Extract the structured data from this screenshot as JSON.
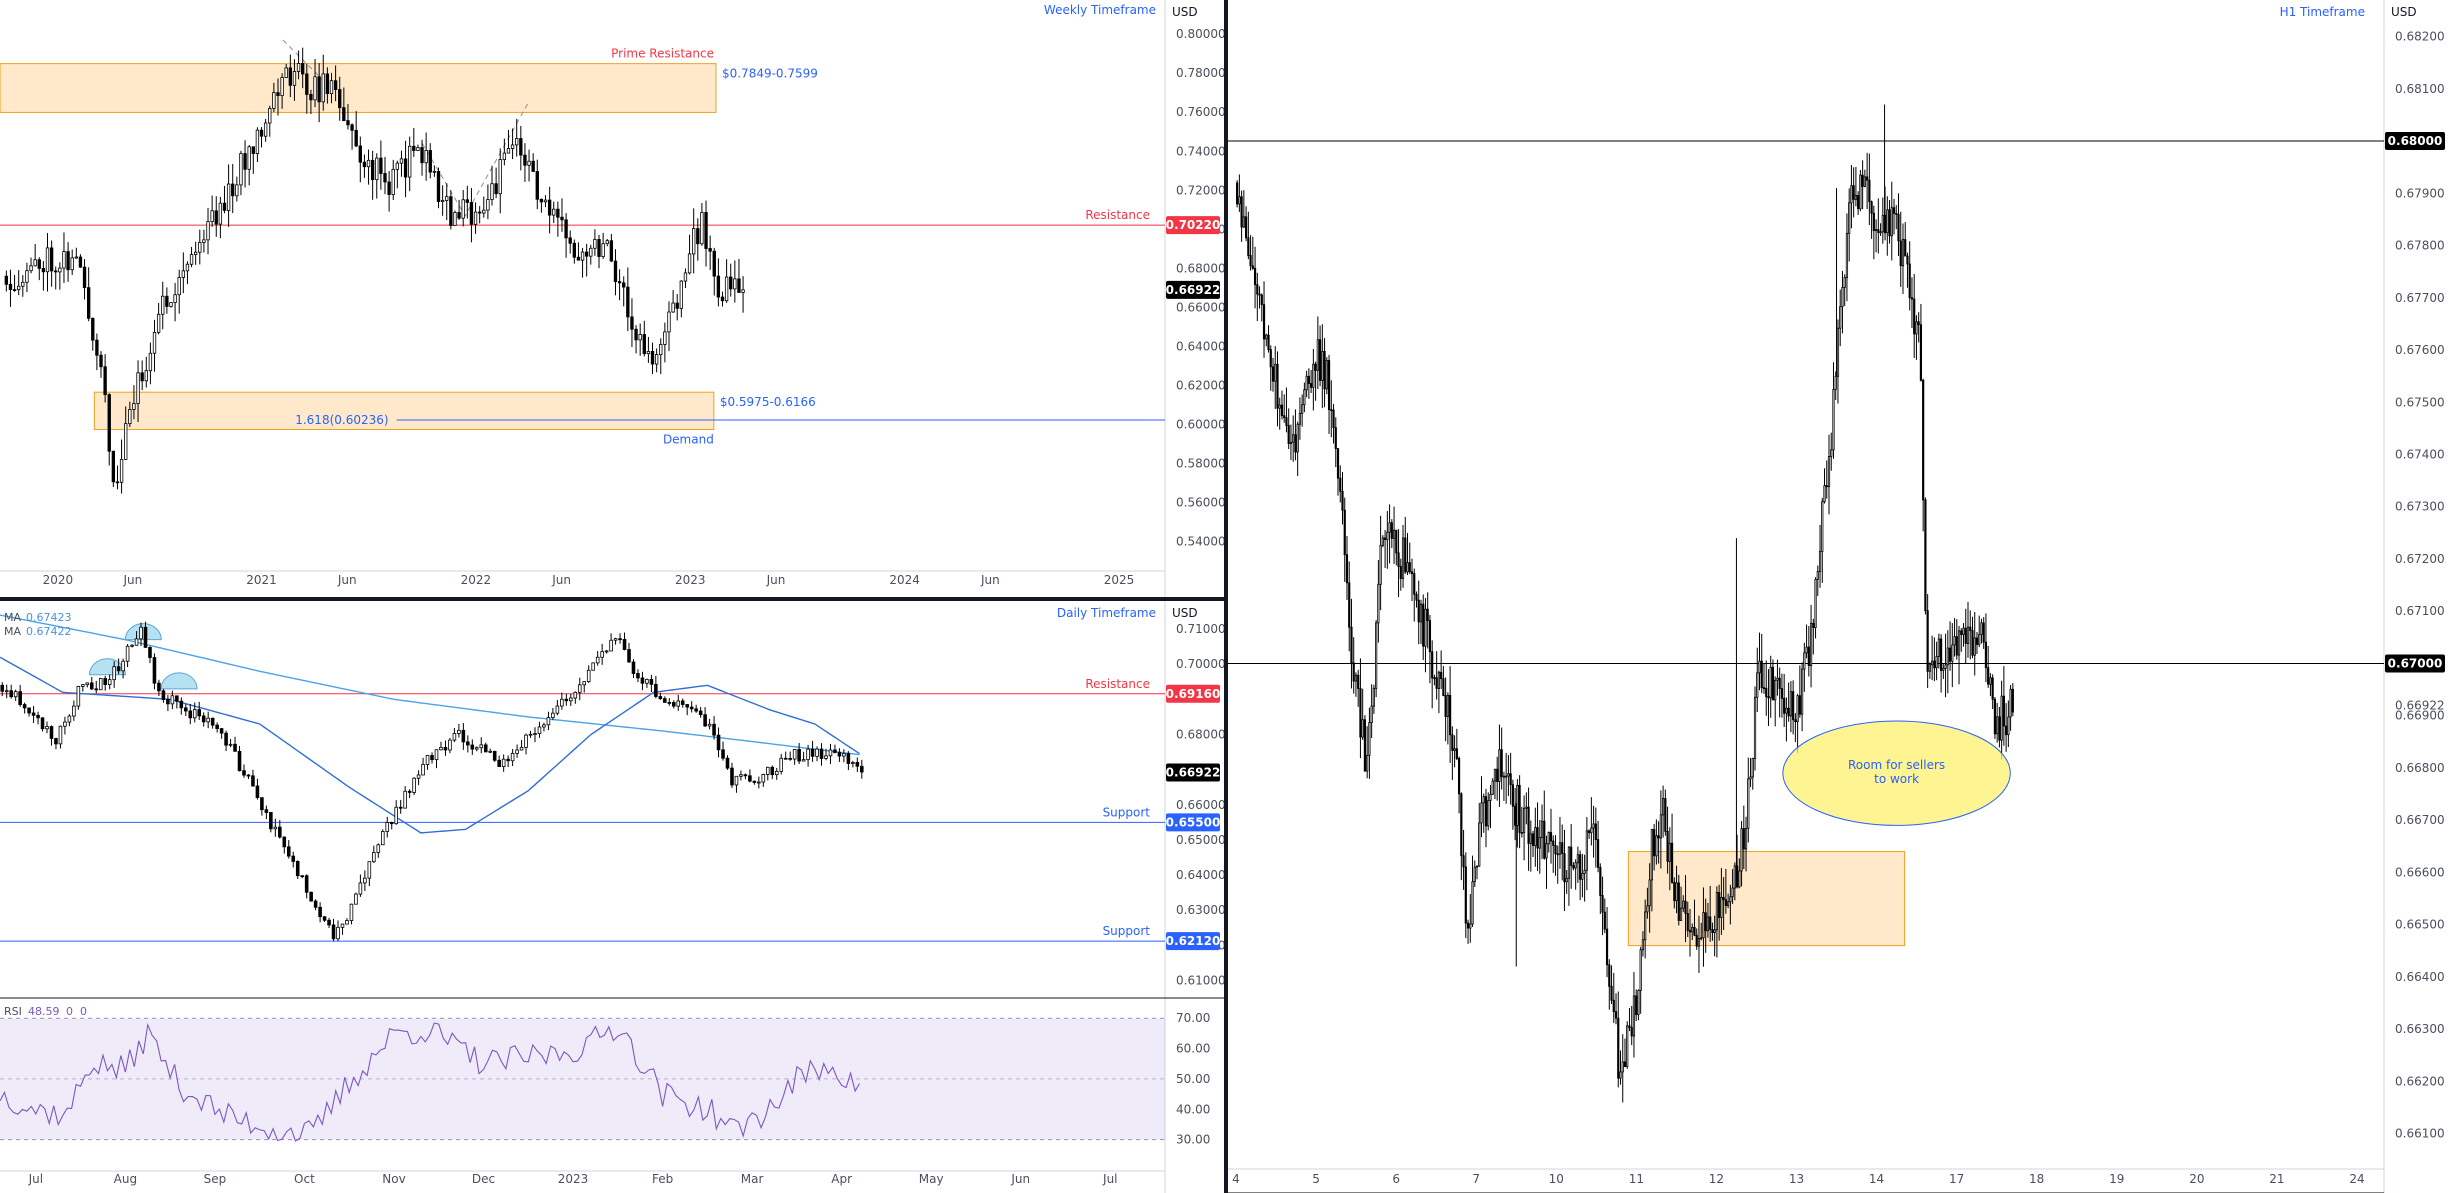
{
  "currency": "USD",
  "chart_data": [
    {
      "id": "weekly",
      "type": "candlestick",
      "title": "Weekly Timeframe",
      "y_axis": {
        "ticks": [
          "0.80000",
          "0.78000",
          "0.76000",
          "0.74000",
          "0.72000",
          "0.70000",
          "0.68000",
          "0.66000",
          "0.64000",
          "0.62000",
          "0.60000",
          "0.58000",
          "0.56000",
          "0.54000"
        ],
        "range": [
          0.525,
          0.8175
        ]
      },
      "x_axis": {
        "labels": [
          {
            "label": "2020",
            "t": 0.05
          },
          {
            "label": "Jun",
            "t": 0.4
          },
          {
            "label": "2021",
            "t": 1.0
          },
          {
            "label": "Jun",
            "t": 1.4
          },
          {
            "label": "2022",
            "t": 2.0
          },
          {
            "label": "Jun",
            "t": 2.4
          },
          {
            "label": "2023",
            "t": 3.0
          },
          {
            "label": "Jun",
            "t": 3.4
          },
          {
            "label": "2024",
            "t": 4.0
          },
          {
            "label": "Jun",
            "t": 4.4
          },
          {
            "label": "2025",
            "t": 5.0
          }
        ],
        "range": [
          -0.22,
          5.21
        ]
      },
      "last_price": "0.66922",
      "zones": [
        {
          "label": "$0.7849-0.7599",
          "name": "Prime Resistance",
          "low": 0.7599,
          "high": 0.7849,
          "t_start": -0.22,
          "t_end": 3.12
        },
        {
          "label": "$0.5975-0.6166",
          "name": "Demand",
          "low": 0.5975,
          "high": 0.6166,
          "t_start": 0.22,
          "t_end": 3.11
        }
      ],
      "levels": [
        {
          "name": "Resistance",
          "value": 0.7022,
          "badge": "0.70220",
          "color": "#f23645"
        }
      ],
      "fib": {
        "label": "1.618(0.60236)",
        "value": 0.60236,
        "t_start": 1.63
      },
      "anchors": [
        {
          "t": -0.2,
          "p": 0.676
        },
        {
          "t": -0.1,
          "p": 0.675
        },
        {
          "t": 0.0,
          "p": 0.686
        },
        {
          "t": 0.15,
          "p": 0.684
        },
        {
          "t": 0.28,
          "p": 0.62
        },
        {
          "t": 0.32,
          "p": 0.561
        },
        {
          "t": 0.38,
          "p": 0.6
        },
        {
          "t": 0.55,
          "p": 0.662
        },
        {
          "t": 0.75,
          "p": 0.7
        },
        {
          "t": 0.9,
          "p": 0.728
        },
        {
          "t": 1.05,
          "p": 0.765
        },
        {
          "t": 1.15,
          "p": 0.782
        },
        {
          "t": 1.25,
          "p": 0.772
        },
        {
          "t": 1.35,
          "p": 0.774
        },
        {
          "t": 1.45,
          "p": 0.74
        },
        {
          "t": 1.6,
          "p": 0.724
        },
        {
          "t": 1.75,
          "p": 0.742
        },
        {
          "t": 1.9,
          "p": 0.705
        },
        {
          "t": 2.05,
          "p": 0.713
        },
        {
          "t": 2.2,
          "p": 0.746
        },
        {
          "t": 2.35,
          "p": 0.706
        },
        {
          "t": 2.5,
          "p": 0.69
        },
        {
          "t": 2.62,
          "p": 0.695
        },
        {
          "t": 2.75,
          "p": 0.648
        },
        {
          "t": 2.84,
          "p": 0.628
        },
        {
          "t": 3.0,
          "p": 0.685
        },
        {
          "t": 3.06,
          "p": 0.704
        },
        {
          "t": 3.15,
          "p": 0.668
        },
        {
          "t": 3.24,
          "p": 0.669
        }
      ],
      "candle_step": 0.0192,
      "seed": 11,
      "annotations": [
        {
          "type": "dashed",
          "points": [
            [
              1.1,
              0.797
            ],
            [
              1.3,
              0.775
            ]
          ]
        },
        {
          "type": "dashed",
          "points": [
            [
              1.75,
              0.744
            ],
            [
              1.95,
              0.707
            ],
            [
              2.25,
              0.766
            ]
          ]
        }
      ]
    },
    {
      "id": "daily",
      "type": "candlestick",
      "title": "Daily Timeframe",
      "y_axis": {
        "ticks": [
          "0.71000",
          "0.70000",
          "0.68000",
          "0.66000",
          "0.65000",
          "0.64000",
          "0.63000",
          "0.62000",
          "0.61000"
        ],
        "range": [
          0.605,
          0.718
        ]
      },
      "x_axis": {
        "labels": [
          {
            "label": "Jul",
            "t": 0.5
          },
          {
            "label": "Aug",
            "t": 1.5
          },
          {
            "label": "Sep",
            "t": 2.5
          },
          {
            "label": "Oct",
            "t": 3.5
          },
          {
            "label": "Nov",
            "t": 4.5
          },
          {
            "label": "Dec",
            "t": 5.5
          },
          {
            "label": "2023",
            "t": 6.5
          },
          {
            "label": "Feb",
            "t": 7.5
          },
          {
            "label": "Mar",
            "t": 8.5
          },
          {
            "label": "Apr",
            "t": 9.5
          },
          {
            "label": "May",
            "t": 10.5
          },
          {
            "label": "Jun",
            "t": 11.5
          },
          {
            "label": "Jul",
            "t": 12.5
          }
        ],
        "range": [
          0.1,
          13.1
        ]
      },
      "last_price": "0.66922",
      "indicators": [
        {
          "name": "MA",
          "value": "0.67423",
          "color": "#4a90e2"
        },
        {
          "name": "MA",
          "value": "0.67422",
          "color": "#4a90e2"
        }
      ],
      "levels": [
        {
          "name": "Resistance",
          "value": 0.6916,
          "badge": "0.69160",
          "color": "#f23645"
        },
        {
          "name": "Support",
          "value": 0.655,
          "badge": "0.65500",
          "color": "#2962ff"
        },
        {
          "name": "Support",
          "value": 0.6212,
          "badge": "0.62120",
          "color": "#2962ff"
        }
      ],
      "anchors": [
        {
          "t": 0.1,
          "p": 0.694
        },
        {
          "t": 0.35,
          "p": 0.69
        },
        {
          "t": 0.75,
          "p": 0.678
        },
        {
          "t": 1.05,
          "p": 0.695
        },
        {
          "t": 1.3,
          "p": 0.694
        },
        {
          "t": 1.7,
          "p": 0.709
        },
        {
          "t": 1.9,
          "p": 0.692
        },
        {
          "t": 2.2,
          "p": 0.687
        },
        {
          "t": 2.6,
          "p": 0.681
        },
        {
          "t": 3.2,
          "p": 0.652
        },
        {
          "t": 3.85,
          "p": 0.623
        },
        {
          "t": 4.05,
          "p": 0.63
        },
        {
          "t": 4.4,
          "p": 0.652
        },
        {
          "t": 4.9,
          "p": 0.673
        },
        {
          "t": 5.25,
          "p": 0.68
        },
        {
          "t": 5.7,
          "p": 0.672
        },
        {
          "t": 6.2,
          "p": 0.683
        },
        {
          "t": 6.7,
          "p": 0.698
        },
        {
          "t": 7.0,
          "p": 0.709
        },
        {
          "t": 7.2,
          "p": 0.698
        },
        {
          "t": 7.5,
          "p": 0.691
        },
        {
          "t": 8.0,
          "p": 0.684
        },
        {
          "t": 8.3,
          "p": 0.667
        },
        {
          "t": 8.6,
          "p": 0.668
        },
        {
          "t": 9.0,
          "p": 0.674
        },
        {
          "t": 9.4,
          "p": 0.675
        },
        {
          "t": 9.6,
          "p": 0.673
        },
        {
          "t": 9.72,
          "p": 0.669
        }
      ],
      "candle_step": 0.05,
      "seed": 23,
      "ma_slow": [
        [
          0.1,
          0.714
        ],
        [
          1.5,
          0.707
        ],
        [
          3.0,
          0.698
        ],
        [
          4.5,
          0.69
        ],
        [
          6.0,
          0.685
        ],
        [
          7.5,
          0.681
        ],
        [
          8.5,
          0.678
        ],
        [
          9.72,
          0.6742
        ]
      ],
      "ma_fast": [
        [
          0.1,
          0.702
        ],
        [
          0.8,
          0.692
        ],
        [
          2.0,
          0.69
        ],
        [
          3.0,
          0.683
        ],
        [
          4.0,
          0.665
        ],
        [
          4.8,
          0.652
        ],
        [
          5.3,
          0.653
        ],
        [
          6.0,
          0.664
        ],
        [
          6.7,
          0.68
        ],
        [
          7.4,
          0.692
        ],
        [
          8.0,
          0.694
        ],
        [
          8.7,
          0.687
        ],
        [
          9.2,
          0.683
        ],
        [
          9.72,
          0.6742
        ]
      ],
      "patterns": [
        [
          1.3,
          0.697
        ],
        [
          1.7,
          0.707
        ],
        [
          2.1,
          0.693
        ]
      ]
    },
    {
      "id": "rsi",
      "type": "line",
      "indicator": {
        "name": "RSI",
        "value": "48.59",
        "extra": [
          "0",
          "0"
        ]
      },
      "y_axis": {
        "ticks": [
          "70.00",
          "60.00",
          "50.00",
          "40.00",
          "30.00"
        ],
        "range": [
          20,
          76
        ]
      },
      "x_axis": {
        "range": [
          0.1,
          13.1
        ]
      },
      "bands": {
        "upper": 70,
        "mid": 50,
        "lower": 30
      },
      "anchors": [
        {
          "t": 0.1,
          "p": 45
        },
        {
          "t": 0.5,
          "p": 40
        },
        {
          "t": 0.85,
          "p": 38
        },
        {
          "t": 1.1,
          "p": 55
        },
        {
          "t": 1.5,
          "p": 53
        },
        {
          "t": 1.75,
          "p": 65
        },
        {
          "t": 2.1,
          "p": 48
        },
        {
          "t": 2.6,
          "p": 38
        },
        {
          "t": 3.2,
          "p": 33
        },
        {
          "t": 3.6,
          "p": 32
        },
        {
          "t": 3.9,
          "p": 45
        },
        {
          "t": 4.5,
          "p": 65
        },
        {
          "t": 4.9,
          "p": 66
        },
        {
          "t": 5.5,
          "p": 55
        },
        {
          "t": 6.2,
          "p": 58
        },
        {
          "t": 6.6,
          "p": 60
        },
        {
          "t": 7.0,
          "p": 68
        },
        {
          "t": 7.5,
          "p": 45
        },
        {
          "t": 8.0,
          "p": 40
        },
        {
          "t": 8.3,
          "p": 33
        },
        {
          "t": 8.7,
          "p": 40
        },
        {
          "t": 9.0,
          "p": 50
        },
        {
          "t": 9.4,
          "p": 55
        },
        {
          "t": 9.6,
          "p": 48
        },
        {
          "t": 9.72,
          "p": 48.59
        }
      ],
      "seed": 37
    },
    {
      "id": "h1",
      "type": "candlestick",
      "title": "H1 Timeframe",
      "y_axis": {
        "ticks": [
          "0.68200",
          "0.68100",
          "0.67900",
          "0.67800",
          "0.67700",
          "0.67600",
          "0.67500",
          "0.67400",
          "0.67300",
          "0.67200",
          "0.67100",
          "0.66900",
          "0.66800",
          "0.66700",
          "0.66600",
          "0.66500",
          "0.66400",
          "0.66300",
          "0.66200",
          "0.66100"
        ],
        "range": [
          0.6604,
          0.6827
        ]
      },
      "x_axis": {
        "labels": [
          {
            "label": "4",
            "t": 0.1
          },
          {
            "label": "5",
            "t": 1.1
          },
          {
            "label": "6",
            "t": 2.1
          },
          {
            "label": "7",
            "t": 3.1
          },
          {
            "label": "10",
            "t": 4.1
          },
          {
            "label": "11",
            "t": 5.1
          },
          {
            "label": "12",
            "t": 6.1
          },
          {
            "label": "13",
            "t": 7.1
          },
          {
            "label": "14",
            "t": 8.1
          },
          {
            "label": "17",
            "t": 9.1
          },
          {
            "label": "18",
            "t": 10.1
          },
          {
            "label": "19",
            "t": 11.1
          },
          {
            "label": "20",
            "t": 12.1
          },
          {
            "label": "21",
            "t": 13.1
          },
          {
            "label": "24",
            "t": 14.1
          }
        ],
        "range": [
          0.0,
          14.4
        ]
      },
      "last_price": "0.66922",
      "levels": [
        {
          "name": "",
          "value": 0.68,
          "badge": "0.68000",
          "color": "#000000"
        },
        {
          "name": "",
          "value": 0.67,
          "badge": "0.67000",
          "color": "#000000"
        }
      ],
      "zones": [
        {
          "label": "",
          "low": 0.6646,
          "high": 0.6664,
          "t_start": 5.0,
          "t_end": 8.45
        }
      ],
      "ellipse": {
        "label": [
          "Room for sellers",
          "to work"
        ],
        "t_center": 8.35,
        "p_center": 0.6679,
        "t_radius": 1.42,
        "p_radius": 0.001
      },
      "anchors": [
        {
          "t": 0.1,
          "p": 0.6792
        },
        {
          "t": 0.35,
          "p": 0.6775
        },
        {
          "t": 0.55,
          "p": 0.676
        },
        {
          "t": 0.8,
          "p": 0.6738
        },
        {
          "t": 1.1,
          "p": 0.676
        },
        {
          "t": 1.25,
          "p": 0.6755
        },
        {
          "t": 1.45,
          "p": 0.6725
        },
        {
          "t": 1.6,
          "p": 0.6695
        },
        {
          "t": 1.75,
          "p": 0.668
        },
        {
          "t": 1.95,
          "p": 0.6725
        },
        {
          "t": 2.2,
          "p": 0.672
        },
        {
          "t": 2.5,
          "p": 0.6705
        },
        {
          "t": 2.85,
          "p": 0.6685
        },
        {
          "t": 3.0,
          "p": 0.6648
        },
        {
          "t": 3.15,
          "p": 0.6668
        },
        {
          "t": 3.4,
          "p": 0.668
        },
        {
          "t": 3.55,
          "p": 0.6675
        },
        {
          "t": 3.75,
          "p": 0.6668
        },
        {
          "t": 4.0,
          "p": 0.6665
        },
        {
          "t": 4.3,
          "p": 0.666
        },
        {
          "t": 4.6,
          "p": 0.6668
        },
        {
          "t": 4.75,
          "p": 0.6645
        },
        {
          "t": 4.9,
          "p": 0.6622
        },
        {
          "t": 5.1,
          "p": 0.6635
        },
        {
          "t": 5.3,
          "p": 0.6665
        },
        {
          "t": 5.45,
          "p": 0.667
        },
        {
          "t": 5.6,
          "p": 0.6655
        },
        {
          "t": 5.85,
          "p": 0.6648
        },
        {
          "t": 6.1,
          "p": 0.6652
        },
        {
          "t": 6.4,
          "p": 0.666
        },
        {
          "t": 6.65,
          "p": 0.6698
        },
        {
          "t": 6.9,
          "p": 0.6695
        },
        {
          "t": 7.1,
          "p": 0.669
        },
        {
          "t": 7.3,
          "p": 0.6705
        },
        {
          "t": 7.55,
          "p": 0.6745
        },
        {
          "t": 7.75,
          "p": 0.6785
        },
        {
          "t": 7.9,
          "p": 0.6792
        },
        {
          "t": 8.1,
          "p": 0.6785
        },
        {
          "t": 8.35,
          "p": 0.6783
        },
        {
          "t": 8.55,
          "p": 0.677
        },
        {
          "t": 8.65,
          "p": 0.6762
        },
        {
          "t": 8.75,
          "p": 0.6695
        },
        {
          "t": 8.9,
          "p": 0.6702
        },
        {
          "t": 9.2,
          "p": 0.6705
        },
        {
          "t": 9.45,
          "p": 0.6705
        },
        {
          "t": 9.6,
          "p": 0.6688
        },
        {
          "t": 9.8,
          "p": 0.6692
        }
      ],
      "candle_step": 0.028,
      "seed": 53,
      "spikes": [
        {
          "t": 7.6,
          "p": 0.6791
        },
        {
          "t": 8.2,
          "p": 0.6807
        },
        {
          "t": 3.6,
          "p": 0.6642
        },
        {
          "t": 6.35,
          "p": 0.6724
        }
      ]
    }
  ]
}
